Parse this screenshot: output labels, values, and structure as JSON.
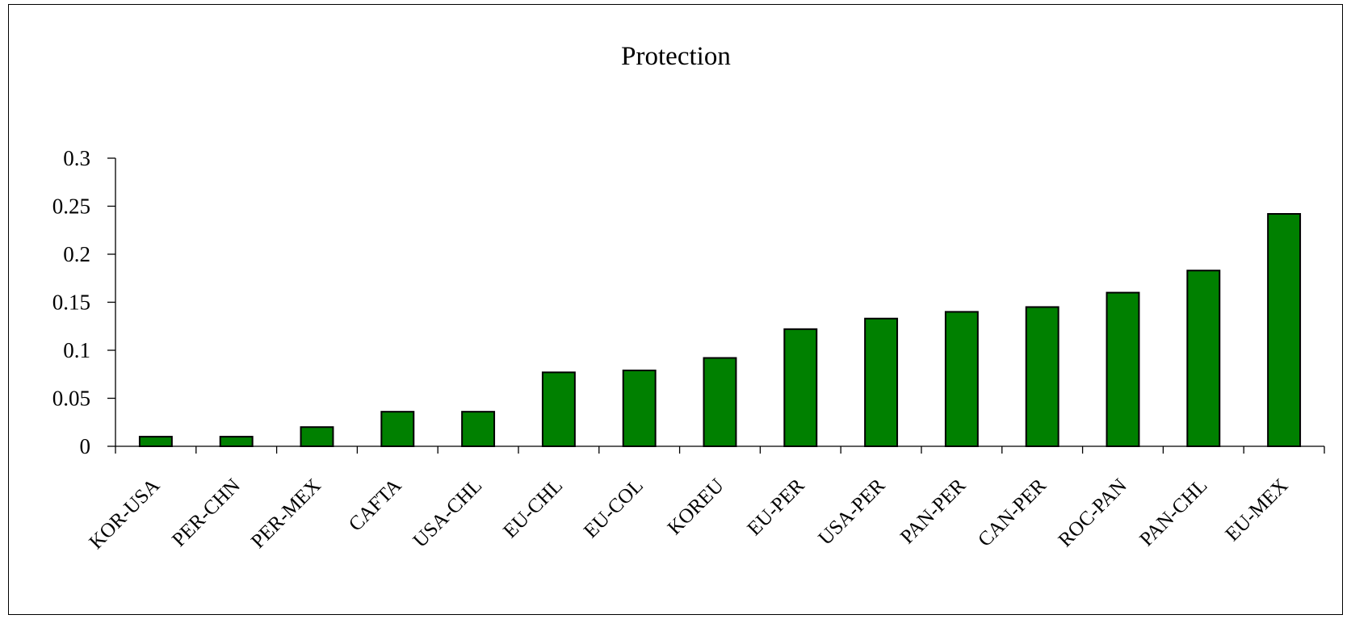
{
  "chart_data": {
    "type": "bar",
    "title": "Protection",
    "xlabel": "",
    "ylabel": "",
    "ylim": [
      0,
      0.3
    ],
    "yticks": [
      "0",
      "0.05",
      "0.1",
      "0.15",
      "0.2",
      "0.25",
      "0.3"
    ],
    "categories": [
      "KOR-USA",
      "PER-CHN",
      "PER-MEX",
      "CAFTA",
      "USA-CHL",
      "EU-CHL",
      "EU-COL",
      "KOREU",
      "EU-PER",
      "USA-PER",
      "PAN-PER",
      "CAN-PER",
      "ROC-PAN",
      "PAN-CHL",
      "EU-MEX"
    ],
    "values": [
      0.01,
      0.01,
      0.02,
      0.036,
      0.036,
      0.077,
      0.079,
      0.092,
      0.122,
      0.133,
      0.14,
      0.145,
      0.16,
      0.183,
      0.242
    ],
    "bar_color": "#008000",
    "grid": false,
    "legend": "none"
  }
}
